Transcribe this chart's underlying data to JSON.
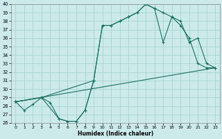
{
  "xlabel": "Humidex (Indice chaleur)",
  "bg_color": "#cdeaea",
  "grid_color": "#9ecfcf",
  "line_color": "#1a7060",
  "xlim": [
    -0.5,
    23.5
  ],
  "ylim": [
    26,
    40
  ],
  "xticks": [
    0,
    1,
    2,
    3,
    4,
    5,
    6,
    7,
    8,
    9,
    10,
    11,
    12,
    13,
    14,
    15,
    16,
    17,
    18,
    19,
    20,
    21,
    22,
    23
  ],
  "yticks": [
    26,
    27,
    28,
    29,
    30,
    31,
    32,
    33,
    34,
    35,
    36,
    37,
    38,
    39,
    40
  ],
  "line1_x": [
    0,
    1,
    2,
    3,
    4,
    5,
    6,
    7,
    8,
    9,
    10,
    11,
    12,
    13,
    14,
    15,
    16,
    17,
    18,
    19,
    20,
    21,
    22,
    23
  ],
  "line1_y": [
    28.5,
    27.5,
    28.2,
    29.0,
    28.4,
    26.5,
    26.2,
    26.2,
    27.5,
    31.0,
    37.5,
    37.5,
    38.0,
    38.5,
    39.0,
    40.0,
    39.5,
    39.0,
    38.5,
    38.0,
    35.5,
    36.0,
    33.0,
    32.5
  ],
  "line2_x": [
    0,
    3,
    9,
    10,
    11,
    12,
    13,
    14,
    15,
    16,
    17,
    18,
    19,
    20,
    21,
    22,
    23
  ],
  "line2_y": [
    28.5,
    29.0,
    31.0,
    37.5,
    37.5,
    38.0,
    38.5,
    39.0,
    40.0,
    39.5,
    35.5,
    38.5,
    37.5,
    36.0,
    33.0,
    32.5,
    32.5
  ],
  "line3_x": [
    0,
    23
  ],
  "line3_y": [
    28.5,
    32.5
  ],
  "line4_x": [
    0,
    3,
    5,
    6,
    7,
    8,
    9
  ],
  "line4_y": [
    28.5,
    29.0,
    26.5,
    26.2,
    26.2,
    27.5,
    31.0
  ]
}
